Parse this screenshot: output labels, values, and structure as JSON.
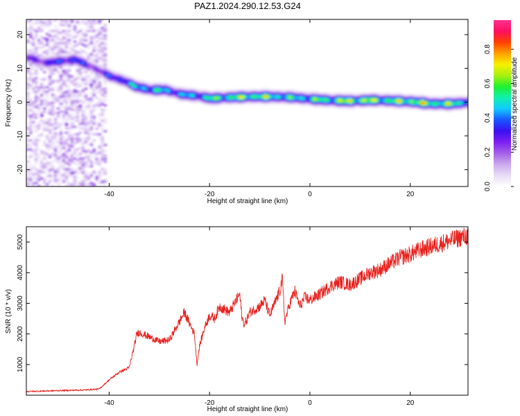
{
  "figure_title": "PAZ1.2024.290.12.53.G24",
  "colors": {
    "line": "#e8211d",
    "axis": "#000000",
    "background": "#ffffff"
  },
  "chart_data": [
    {
      "type": "heatmap",
      "xlabel": "Height of straight line (km)",
      "ylabel": "Frequency (Hz)",
      "xlim": [
        -56.5,
        31.5
      ],
      "ylim": [
        -25,
        24.5
      ],
      "x_ticks": [
        -40,
        -20,
        0,
        20
      ],
      "y_ticks": [
        -20,
        -10,
        0,
        10,
        20
      ],
      "colorbar": {
        "label": "Normalized spectral amplitude",
        "range": [
          0,
          0.97
        ],
        "ticks": [
          0.0,
          0.2,
          0.4,
          0.6,
          0.8
        ],
        "colors": [
          "#ffffff",
          "#e8dcf6",
          "#cba9ee",
          "#a460e8",
          "#7c20f0",
          "#3a10f0",
          "#1a55ff",
          "#12c8ff",
          "#10f0b0",
          "#20f030",
          "#a8f010",
          "#f8f000",
          "#ffa000",
          "#ff4000",
          "#ff1060",
          "#ff3090"
        ]
      },
      "ridge": {
        "x": [
          -56,
          -53,
          -50,
          -47,
          -44,
          -42,
          -40,
          -37,
          -35,
          -32,
          -29,
          -26,
          -23,
          -20,
          -16,
          -12,
          -8,
          -4,
          0,
          4,
          8,
          12,
          16,
          20,
          24,
          28,
          31.5
        ],
        "freq": [
          13,
          11.5,
          12,
          12.5,
          10.5,
          9,
          7.5,
          6,
          4.5,
          3.5,
          3.5,
          2.2,
          1.8,
          1,
          1.3,
          1.5,
          1.5,
          1.3,
          0.8,
          0.4,
          0.2,
          0.5,
          0.3,
          0,
          -0.6,
          -0.6,
          -0.2
        ],
        "amplitude": [
          0.35,
          0.4,
          0.45,
          0.5,
          0.35,
          0.35,
          0.45,
          0.55,
          0.6,
          0.65,
          0.6,
          0.55,
          0.6,
          0.7,
          0.75,
          0.8,
          0.75,
          0.65,
          0.7,
          0.75,
          0.85,
          0.8,
          0.75,
          0.85,
          0.8,
          0.75,
          0.7
        ]
      }
    },
    {
      "type": "line",
      "xlabel": "Height of straight line (km)",
      "ylabel": "SNR (10 * v/v)",
      "xlim": [
        -56.5,
        31.5
      ],
      "ylim": [
        0,
        5500
      ],
      "x_ticks": [
        -40,
        -20,
        0,
        20
      ],
      "y_ticks": [
        1000,
        2000,
        3000,
        4000,
        5000
      ],
      "series": [
        {
          "x": [
            -56.5,
            -50,
            -45,
            -42,
            -40,
            -38,
            -36,
            -35,
            -34.5,
            -34,
            -32,
            -30,
            -28,
            -26,
            -25,
            -24,
            -23,
            -22.5,
            -22,
            -21,
            -20,
            -19,
            -18,
            -16,
            -15,
            -14,
            -13.5,
            -13,
            -12,
            -10,
            -9,
            -8,
            -6,
            -5.5,
            -5,
            -4,
            -3,
            -2,
            -1,
            0,
            2,
            4,
            6,
            8,
            10,
            12,
            14,
            16,
            18,
            20,
            22,
            24,
            26,
            28,
            30,
            31.5
          ],
          "y": [
            120,
            150,
            170,
            200,
            500,
            750,
            900,
            1600,
            2000,
            2050,
            1900,
            1750,
            1800,
            2400,
            2700,
            2350,
            2000,
            1000,
            1600,
            2200,
            2600,
            2500,
            2900,
            2700,
            3000,
            3300,
            2500,
            2300,
            2700,
            2900,
            3100,
            2600,
            3400,
            3800,
            2400,
            3000,
            3400,
            2900,
            3200,
            3100,
            3300,
            3550,
            3700,
            3600,
            3800,
            4000,
            4100,
            4300,
            4500,
            4600,
            4750,
            4850,
            4950,
            5050,
            5150,
            5200
          ]
        }
      ]
    }
  ]
}
